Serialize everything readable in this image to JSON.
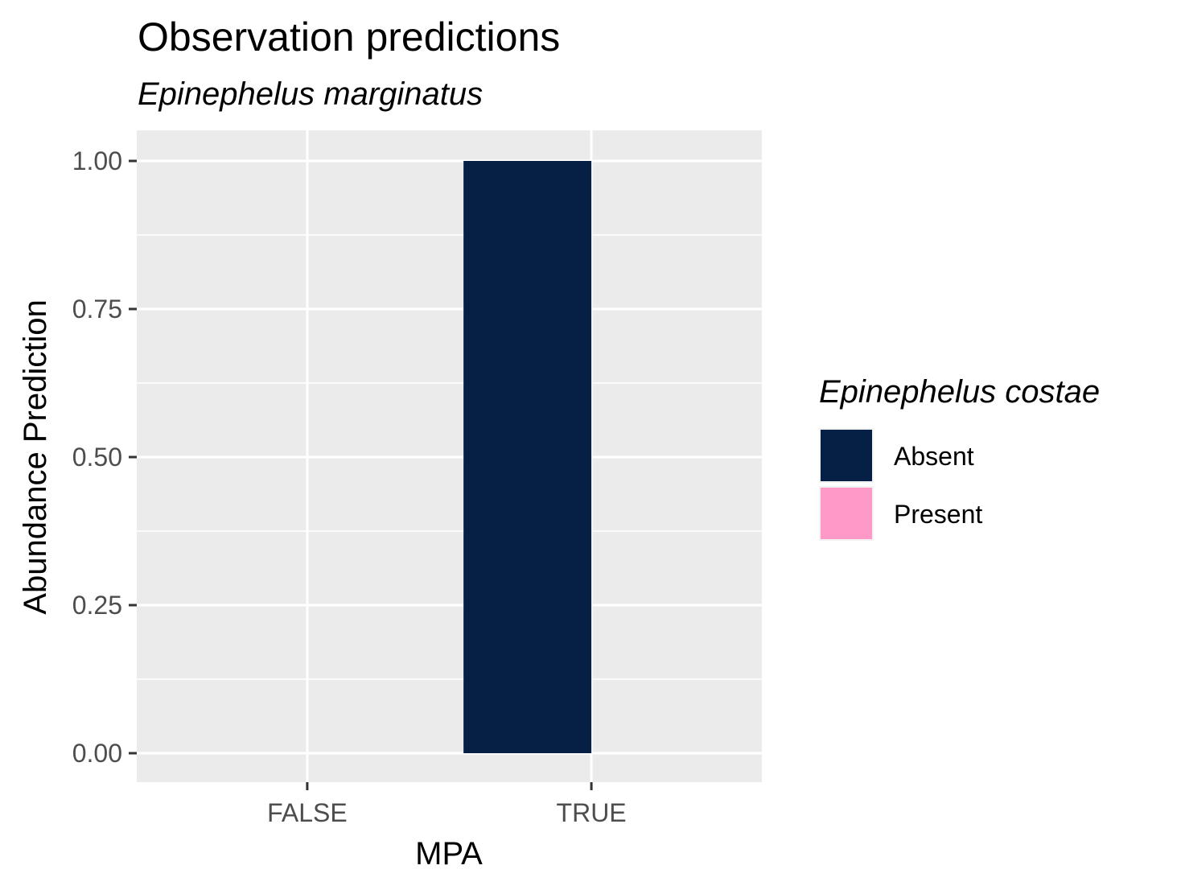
{
  "chart_data": {
    "type": "bar",
    "title": "Observation predictions",
    "subtitle": "Epinephelus marginatus",
    "xlabel": "MPA",
    "ylabel": "Abundance Prediction",
    "categories": [
      "FALSE",
      "TRUE"
    ],
    "series": [
      {
        "name": "Absent",
        "values": [
          0,
          1.0
        ],
        "color": "#061f45"
      },
      {
        "name": "Present",
        "values": [
          0,
          0
        ],
        "color": "#ff9ac8"
      }
    ],
    "ylim": [
      0,
      1.0
    ],
    "yticks": [
      0.0,
      0.25,
      0.5,
      0.75,
      1.0
    ],
    "ytick_labels": [
      "0.00",
      "0.25",
      "0.50",
      "0.75",
      "1.00"
    ],
    "legend": {
      "title": "Epinephelus costae",
      "position": "right",
      "entries": [
        "Absent",
        "Present"
      ]
    },
    "grid": true,
    "panel_background": "#ebebeb"
  }
}
